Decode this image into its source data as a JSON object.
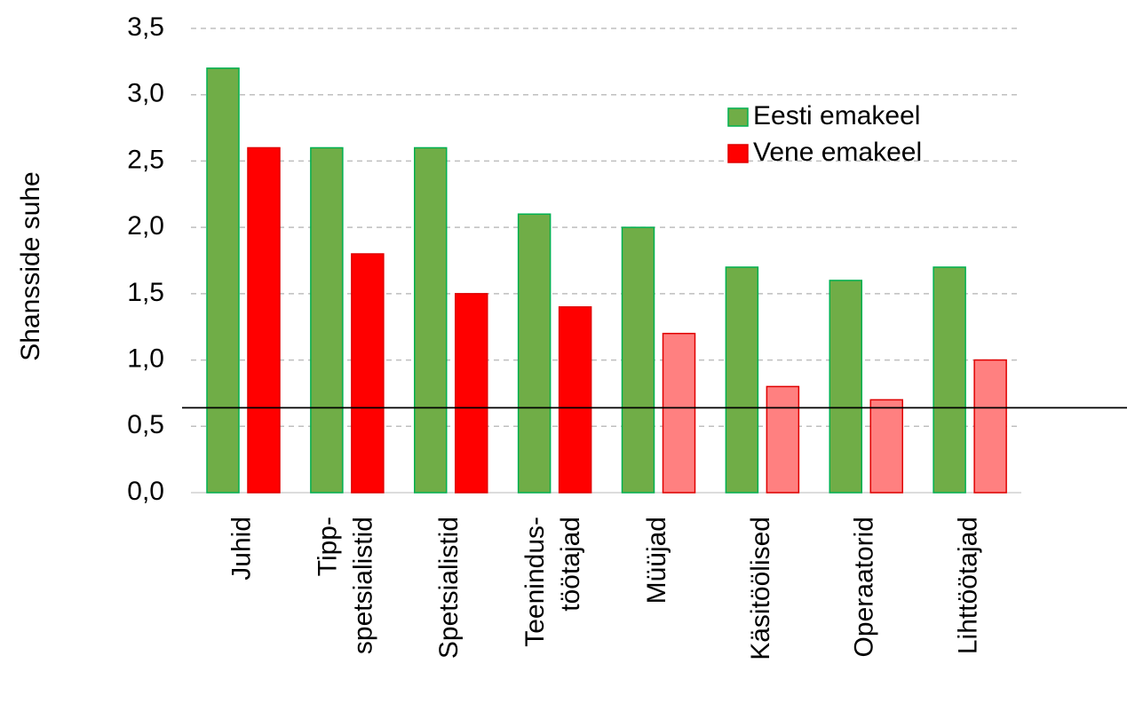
{
  "chart_data": {
    "type": "bar",
    "y_label": "Shansside suhe",
    "categories": [
      "Juhid",
      "Tipp-\nspetsialistid",
      "Spetsialistid",
      "Teenindus-\ntöötajad",
      "Müüjad",
      "Käsitöölised",
      "Operaatorid",
      "Lihttöötajad"
    ],
    "series": [
      {
        "name": "Eesti emakeel",
        "color": "#70ad47",
        "values": [
          3.2,
          2.6,
          2.6,
          2.1,
          2.0,
          1.7,
          1.6,
          1.7
        ]
      },
      {
        "name": "Vene emakeel",
        "color": "#ff0000",
        "colors": [
          "#ff0000",
          "#ff0000",
          "#ff0000",
          "#ff0000",
          "#ff8080",
          "#ff8080",
          "#ff8080",
          "#ff8080"
        ],
        "values": [
          2.6,
          1.8,
          1.5,
          1.4,
          1.2,
          0.8,
          0.7,
          1.0
        ]
      }
    ],
    "ylim": [
      0,
      3.5
    ],
    "yticks": [
      {
        "value": 0,
        "label": "0,0"
      },
      {
        "value": 0.5,
        "label": "0,5"
      },
      {
        "value": 1,
        "label": "1,0"
      },
      {
        "value": 1.5,
        "label": "1,5"
      },
      {
        "value": 2,
        "label": "2,0"
      },
      {
        "value": 2.5,
        "label": "2,5"
      },
      {
        "value": 3,
        "label": "3,0"
      },
      {
        "value": 3.5,
        "label": "3,5"
      }
    ],
    "grid": true,
    "reference_line": 0.64,
    "legend": "upper right"
  }
}
